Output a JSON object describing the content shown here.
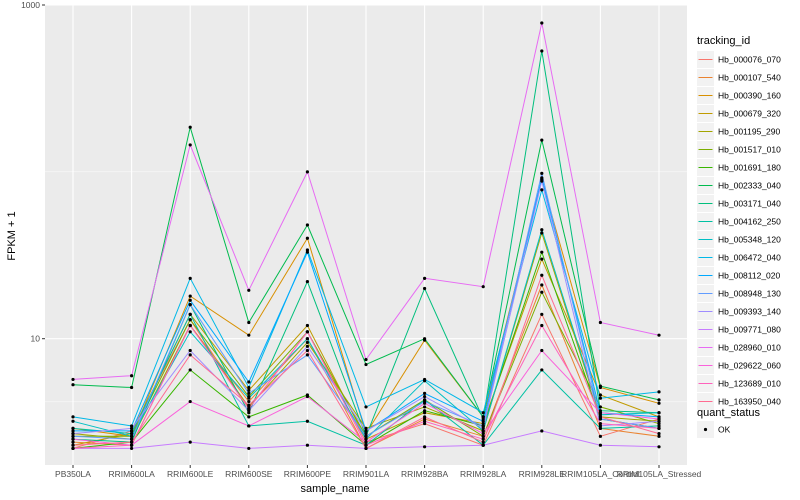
{
  "chart_data": {
    "type": "line",
    "xlabel": "sample_name",
    "ylabel": "FPKM + 1",
    "y_scale": "log10",
    "ylim": [
      1.75,
      1000
    ],
    "y_ticks": [
      {
        "value": 10,
        "label": "10"
      },
      {
        "value": 1000,
        "label": "1000"
      }
    ],
    "grid": true,
    "panel_background": "#ebebeb",
    "point_color": "#000000",
    "categories": [
      "PB350LA",
      "RRIM600LA",
      "RRIM600LE",
      "RRIM600SE",
      "RRIM600PE",
      "RRIM901LA",
      "RRIM928BA",
      "RRIM928LA",
      "RRIM928LE",
      "RRIM105LA_Control",
      "RRIM105LA_Stressed"
    ],
    "legend": {
      "position": "right",
      "color_title": "tracking_id",
      "shape_title": "quant_status",
      "shape_entries": [
        "OK"
      ]
    },
    "series": [
      {
        "name": "Hb_000076_070",
        "color": "#F8766D",
        "values": [
          2.2,
          2.8,
          13,
          3.8,
          11,
          2.4,
          3.1,
          2.3,
          14,
          2.6,
          3.3
        ]
      },
      {
        "name": "Hb_000107_540",
        "color": "#EA8331",
        "values": [
          2.4,
          2.3,
          12,
          4.2,
          10,
          2.2,
          3.3,
          2.6,
          21,
          2.9,
          2.6
        ]
      },
      {
        "name": "Hb_000390_160",
        "color": "#D89000",
        "values": [
          2.9,
          2.6,
          18,
          10.5,
          40,
          2.7,
          9.8,
          3.4,
          90,
          5.1,
          4.1
        ]
      },
      {
        "name": "Hb_000679_320",
        "color": "#C09B00",
        "values": [
          2.3,
          2.7,
          14,
          4.9,
          12,
          2.5,
          3.6,
          3.1,
          30,
          4.6,
          3.4
        ]
      },
      {
        "name": "Hb_001195_290",
        "color": "#A3A500",
        "values": [
          2.7,
          2.5,
          12,
          3.9,
          9.5,
          2.9,
          3.9,
          2.8,
          43,
          3.4,
          3.2
        ]
      },
      {
        "name": "Hb_001517_010",
        "color": "#7CAE00",
        "values": [
          2.6,
          2.6,
          13,
          4.5,
          11,
          2.6,
          4.3,
          2.6,
          19,
          3.9,
          3.1
        ]
      },
      {
        "name": "Hb_001691_180",
        "color": "#39B600",
        "values": [
          2.2,
          2.4,
          6.5,
          3.4,
          4.6,
          2.3,
          3.7,
          3.0,
          33,
          3.3,
          2.9
        ]
      },
      {
        "name": "Hb_002333_040",
        "color": "#00BB4E",
        "values": [
          5.3,
          5.1,
          185,
          12.5,
          48,
          7.0,
          10.0,
          3.4,
          155,
          5.2,
          4.3
        ]
      },
      {
        "name": "Hb_003171_040",
        "color": "#00BF7D",
        "values": [
          2.5,
          2.4,
          16,
          3.6,
          22,
          2.6,
          20,
          3.3,
          530,
          3.7,
          3.6
        ]
      },
      {
        "name": "Hb_004162_250",
        "color": "#00C1A3",
        "values": [
          2.9,
          2.7,
          14,
          3.0,
          3.2,
          2.3,
          4.3,
          2.3,
          6.5,
          2.9,
          3.0
        ]
      },
      {
        "name": "Hb_005348_120",
        "color": "#00BFC4",
        "values": [
          3.2,
          2.6,
          11,
          4.4,
          10,
          2.5,
          5.6,
          2.8,
          45,
          3.5,
          3.6
        ]
      },
      {
        "name": "Hb_006472_040",
        "color": "#00B8E7",
        "values": [
          3.4,
          3.0,
          23,
          5.1,
          34,
          3.9,
          5.7,
          3.6,
          78,
          4.4,
          4.8
        ]
      },
      {
        "name": "Hb_008112_020",
        "color": "#00A9FF",
        "values": [
          2.8,
          2.8,
          17,
          5.5,
          33,
          2.8,
          4.7,
          3.2,
          92,
          3.6,
          3.4
        ]
      },
      {
        "name": "Hb_008948_130",
        "color": "#619CFF",
        "values": [
          2.6,
          2.5,
          16,
          4.7,
          8.0,
          2.6,
          4.2,
          3.0,
          98,
          3.3,
          2.9
        ]
      },
      {
        "name": "Hb_009393_140",
        "color": "#9F8CFF",
        "values": [
          2.7,
          2.9,
          8.5,
          3.7,
          9.0,
          2.8,
          4.5,
          2.9,
          88,
          3.0,
          3.2
        ]
      },
      {
        "name": "Hb_009771_080",
        "color": "#C77CFF",
        "values": [
          2.2,
          2.2,
          2.4,
          2.2,
          2.3,
          2.2,
          2.25,
          2.3,
          2.8,
          2.3,
          2.25
        ]
      },
      {
        "name": "Hb_028960_010",
        "color": "#E76BF3",
        "values": [
          5.7,
          6.0,
          145,
          19.5,
          100,
          7.5,
          23,
          20.5,
          780,
          12.5,
          10.5
        ]
      },
      {
        "name": "Hb_029622_060",
        "color": "#FA62DB",
        "values": [
          2.5,
          2.3,
          4.2,
          3.0,
          4.5,
          2.4,
          4.1,
          2.7,
          8.5,
          3.6,
          3.3
        ]
      },
      {
        "name": "Hb_123689_010",
        "color": "#FF62BC",
        "values": [
          2.2,
          2.3,
          12,
          3.8,
          11,
          2.3,
          3.2,
          2.5,
          12,
          3.1,
          2.9
        ]
      },
      {
        "name": "Hb_163950_040",
        "color": "#FF6C91",
        "values": [
          2.3,
          2.4,
          8.0,
          4.0,
          8.5,
          2.2,
          3.4,
          2.4,
          24,
          3.4,
          2.7
        ]
      }
    ]
  }
}
